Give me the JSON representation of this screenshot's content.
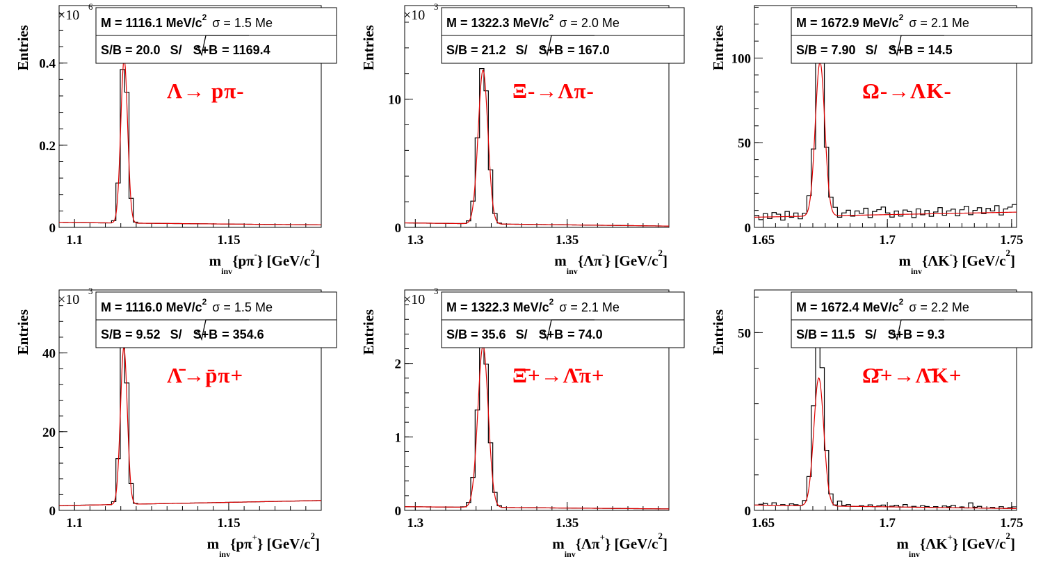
{
  "style": {
    "fit_color": "#e00000",
    "hist_color": "#000000",
    "label_color": "#ff0000"
  },
  "chart_data": [
    {
      "type": "histogram",
      "ylabel": "Entries",
      "multiplier": "×10",
      "multiplier_exp": "6",
      "xlabel": "m",
      "xlabel_sub": "inv",
      "xlabel_rest": "{pπ",
      "xlabel_rest_sup": "-",
      "xlabel_unit": "} [GeV/c",
      "xlabel_unit_sup": "2",
      "xlabel_close": "]",
      "xlim": [
        1.095,
        1.18
      ],
      "ylim": [
        0,
        0.54
      ],
      "xticks": [
        1.1,
        1.15
      ],
      "xtick_labels": [
        "1.1",
        "1.15"
      ],
      "yticks": [
        0,
        0.2,
        0.4
      ],
      "ytick_labels": [
        "0",
        "0.2",
        "0.4"
      ],
      "stats": {
        "m_label": "M = 1116.1 MeV/c",
        "m_sup": "2",
        "sigma": "σ = 1.5 Me",
        "sb": "S/B = 20.0",
        "ssb_prefix": "S/",
        "ssb_root": "S+B",
        "ssb_value": "= 1169.4"
      },
      "reaction": {
        "parts": [
          "Λ→ p",
          "π",
          "-"
        ]
      },
      "reaction_text": "Λ→ pπ-",
      "peak": {
        "mean": 1.1161,
        "sigma": 0.0011,
        "amp": 0.4,
        "hist_amp": 0.42,
        "bg": [
          0.012,
          0.006
        ]
      },
      "hist_noise": [
        0.0,
        0.0,
        0.0,
        0.0,
        0.0,
        0.0
      ]
    },
    {
      "type": "histogram",
      "ylabel": "Entries",
      "multiplier": "×10",
      "multiplier_exp": "3",
      "xlabel": "m",
      "xlabel_sub": "inv",
      "xlabel_rest": "{Λπ",
      "xlabel_rest_sup": "-",
      "xlabel_unit": "} [GeV/c",
      "xlabel_unit_sup": "2",
      "xlabel_close": "]",
      "xlim": [
        1.2965,
        1.3835
      ],
      "ylim": [
        0,
        17.3
      ],
      "xticks": [
        1.3,
        1.35
      ],
      "xtick_labels": [
        "1.3",
        "1.35"
      ],
      "yticks": [
        0,
        10
      ],
      "ytick_labels": [
        "0",
        "10"
      ],
      "stats": {
        "m_label": "M = 1322.3 MeV/c",
        "m_sup": "2",
        "sigma": "σ = 2.0 Me",
        "sb": "S/B = 21.2",
        "ssb_prefix": "S/",
        "ssb_root": "S+B",
        "ssb_value": "= 167.0"
      },
      "reaction_text": "Ξ-→Λπ-",
      "peak": {
        "mean": 1.3223,
        "sigma": 0.0016,
        "amp": 12.0,
        "hist_amp": 12.5,
        "bg": [
          0.35,
          0.1
        ]
      },
      "hist_noise": [
        0.0,
        0.0,
        0.0,
        0.0,
        0.0,
        0.0
      ]
    },
    {
      "type": "histogram",
      "ylabel": "Entries",
      "multiplier": "",
      "multiplier_exp": "",
      "xlabel": "m",
      "xlabel_sub": "inv",
      "xlabel_rest": "{ΛK",
      "xlabel_rest_sup": "-",
      "xlabel_unit": "} [GeV/c",
      "xlabel_unit_sup": "2",
      "xlabel_close": "]",
      "xlim": [
        1.6465,
        1.752
      ],
      "ylim": [
        0,
        131
      ],
      "xticks": [
        1.65,
        1.7,
        1.75
      ],
      "xtick_labels": [
        "1.65",
        "1.7",
        "1.75"
      ],
      "yticks": [
        0,
        50,
        100
      ],
      "ytick_labels": [
        "0",
        "50",
        "100"
      ],
      "stats": {
        "m_label": "M = 1672.9 MeV/c",
        "m_sup": "2",
        "sigma": "σ = 2.1 Me",
        "sb": "S/B = 7.90",
        "ssb_prefix": "S/",
        "ssb_root": "S+B",
        "ssb_value": "= 14.5"
      },
      "reaction_text": "Ω-→ΛK-",
      "peak": {
        "mean": 1.6729,
        "sigma": 0.0019,
        "amp": 91,
        "hist_amp": 99,
        "bg": [
          6,
          9
        ]
      },
      "hist_noise": [
        2,
        -3,
        4,
        -2,
        5,
        3,
        -4,
        6,
        -1,
        4,
        -3,
        2,
        7,
        -2,
        3,
        5,
        -3,
        4,
        8,
        -2,
        3,
        6,
        -1,
        5,
        2,
        8,
        -3,
        4,
        6,
        9
      ]
    },
    {
      "type": "histogram",
      "ylabel": "Entries",
      "multiplier": "×10",
      "multiplier_exp": "3",
      "xlabel": "m",
      "xlabel_sub": "inv",
      "xlabel_rest": "{pπ",
      "xlabel_rest_sup": "+",
      "xlabel_unit": "} [GeV/c",
      "xlabel_unit_sup": "2",
      "xlabel_close": "]",
      "xlim": [
        1.095,
        1.18
      ],
      "ylim": [
        0,
        56
      ],
      "xticks": [
        1.1,
        1.15
      ],
      "xtick_labels": [
        "1.1",
        "1.15"
      ],
      "yticks": [
        0,
        20,
        40
      ],
      "ytick_labels": [
        "0",
        "20",
        "40"
      ],
      "stats": {
        "m_label": "M = 1116.0 MeV/c",
        "m_sup": "2",
        "sigma": "σ = 1.5 Me",
        "sb": "S/B = 9.52",
        "ssb_prefix": "S/",
        "ssb_root": "S+B",
        "ssb_value": "= 354.6"
      },
      "reaction_text": "Λ̄→p̄π+",
      "peak": {
        "mean": 1.116,
        "sigma": 0.0011,
        "amp": 40,
        "hist_amp": 43.5,
        "bg": [
          1.2,
          2.5
        ]
      },
      "hist_noise": [
        0.0,
        0.0,
        0.0,
        0.0,
        0.0,
        0.0
      ]
    },
    {
      "type": "histogram",
      "ylabel": "Entries",
      "multiplier": "×10",
      "multiplier_exp": "3",
      "xlabel": "m",
      "xlabel_sub": "inv",
      "xlabel_rest": "{Λπ",
      "xlabel_rest_sup": "+",
      "xlabel_unit": "} [GeV/c",
      "xlabel_unit_sup": "2",
      "xlabel_close": "]",
      "xlim": [
        1.2965,
        1.3835
      ],
      "ylim": [
        0,
        3.0
      ],
      "xticks": [
        1.3,
        1.35
      ],
      "xtick_labels": [
        "1.3",
        "1.35"
      ],
      "yticks": [
        0,
        1,
        2
      ],
      "ytick_labels": [
        "0",
        "1",
        "2"
      ],
      "stats": {
        "m_label": "M = 1322.3 MeV/c",
        "m_sup": "2",
        "sigma": "σ = 2.1 Me",
        "sb": "S/B = 35.6",
        "ssb_prefix": "S/",
        "ssb_root": "S+B",
        "ssb_value": "= 74.0"
      },
      "reaction_text": "Ξ̄+→Λ̄π+",
      "peak": {
        "mean": 1.3223,
        "sigma": 0.0017,
        "amp": 2.2,
        "hist_amp": 2.3,
        "bg": [
          0.05,
          0.02
        ]
      },
      "hist_noise": [
        0.0,
        0.0,
        0.0,
        0.0,
        0.0,
        0.0
      ]
    },
    {
      "type": "histogram",
      "ylabel": "Entries",
      "multiplier": "",
      "multiplier_exp": "",
      "xlabel": "m",
      "xlabel_sub": "inv",
      "xlabel_rest": "{ΛK",
      "xlabel_rest_sup": "+",
      "xlabel_unit": "} [GeV/c",
      "xlabel_unit_sup": "2",
      "xlabel_close": "]",
      "xlim": [
        1.6465,
        1.752
      ],
      "ylim": [
        0,
        62
      ],
      "xticks": [
        1.65,
        1.7,
        1.75
      ],
      "xtick_labels": [
        "1.65",
        "1.7",
        "1.75"
      ],
      "yticks": [
        0,
        50
      ],
      "ytick_labels": [
        "0",
        "50"
      ],
      "stats": {
        "m_label": "M = 1672.4 MeV/c",
        "m_sup": "2",
        "sigma": "σ = 2.2 Me",
        "sb": "S/B = 11.5",
        "ssb_prefix": "S/",
        "ssb_root": "S+B",
        "ssb_value": "= 9.3"
      },
      "reaction_text": "Ω̄+→Λ̄K+",
      "peak": {
        "mean": 1.6724,
        "sigma": 0.002,
        "amp": 36,
        "hist_amp": 47,
        "bg": [
          1.5,
          0.5
        ]
      },
      "hist_noise": [
        0,
        1,
        2,
        0,
        3,
        0,
        1,
        0,
        2,
        1,
        0,
        1,
        0,
        2,
        1,
        3,
        0,
        1,
        0,
        6,
        1,
        2,
        0,
        0,
        1,
        0,
        2,
        0,
        1,
        2
      ]
    }
  ]
}
